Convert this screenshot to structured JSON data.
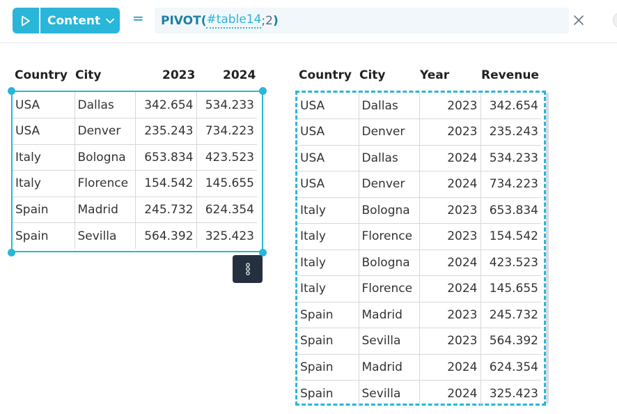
{
  "toolbar": {
    "content_label": "Content",
    "equals": "=",
    "formula": {
      "fn": "PIVOT",
      "open": "(",
      "ref": "#table14",
      "sep": ";",
      "arg": " 2",
      "close": ")"
    }
  },
  "left_table": {
    "headers": [
      "Country",
      "City",
      "2023",
      "2024"
    ],
    "rows": [
      [
        "USA",
        "Dallas",
        "342.654",
        "534.233"
      ],
      [
        "USA",
        "Denver",
        "235.243",
        "734.223"
      ],
      [
        "Italy",
        "Bologna",
        "653.834",
        "423.523"
      ],
      [
        "Italy",
        "Florence",
        "154.542",
        "145.655"
      ],
      [
        "Spain",
        "Madrid",
        "245.732",
        "624.354"
      ],
      [
        "Spain",
        "Sevilla",
        "564.392",
        "325.423"
      ]
    ]
  },
  "right_table": {
    "headers": [
      "Country",
      "City",
      "Year",
      "Revenue"
    ],
    "rows": [
      [
        "USA",
        "Dallas",
        "2023",
        "342.654"
      ],
      [
        "USA",
        "Denver",
        "2023",
        "235.243"
      ],
      [
        "USA",
        "Dallas",
        "2024",
        "534.233"
      ],
      [
        "USA",
        "Denver",
        "2024",
        "734.223"
      ],
      [
        "Italy",
        "Bologna",
        "2023",
        "653.834"
      ],
      [
        "Italy",
        "Florence",
        "2023",
        "154.542"
      ],
      [
        "Italy",
        "Bologna",
        "2024",
        "423.523"
      ],
      [
        "Italy",
        "Florence",
        "2024",
        "145.655"
      ],
      [
        "Spain",
        "Madrid",
        "2023",
        "245.732"
      ],
      [
        "Spain",
        "Sevilla",
        "2023",
        "564.392"
      ],
      [
        "Spain",
        "Madrid",
        "2024",
        "624.354"
      ],
      [
        "Spain",
        "Sevilla",
        "2024",
        "325.423"
      ]
    ]
  },
  "icons": {
    "run": "play-icon",
    "dropdown": "chevron-down-icon",
    "close": "close-icon",
    "menu": "vertical-dots-icon"
  },
  "colors": {
    "accent": "#29b6d8",
    "formula_fn": "#1e7fa6",
    "menu_bg": "#24303f"
  }
}
